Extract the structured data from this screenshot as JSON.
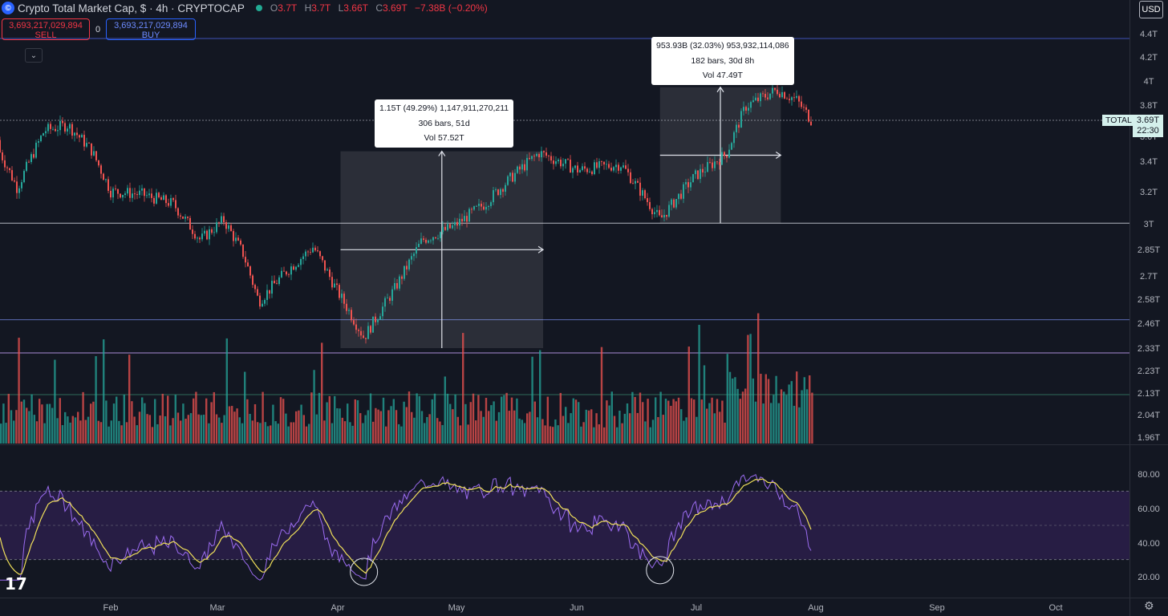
{
  "header": {
    "logo_glyph": "©",
    "symbol_title": "Crypto Total Market Cap, $ · 4h · CRYPTOCAP",
    "open_label": "O",
    "open": "3.7T",
    "high_label": "H",
    "high": "3.7T",
    "low_label": "L",
    "low": "3.66T",
    "close_label": "C",
    "close": "3.69T",
    "change": "−7.38B (−0.20%)",
    "status_color": "#22ab94"
  },
  "trade": {
    "sell_price": "3,693,217,029,894",
    "sell_label": "SELL",
    "spread": "0",
    "buy_price": "3,693,217,029,894",
    "buy_label": "BUY",
    "collapse_glyph": "⌄"
  },
  "currency": "USD",
  "price_tag": {
    "label": "TOTAL",
    "value": "3.69T",
    "countdown": "22:30"
  },
  "measures": [
    {
      "line1": "1.15T (49.29%) 1,147,911,270,211",
      "line2": "306 bars, 51d",
      "line3": "Vol 57.52T"
    },
    {
      "line1": "953.93B (32.03%) 953,932,114,086",
      "line2": "182 bars, 30d 8h",
      "line3": "Vol 47.49T"
    }
  ],
  "branding": {
    "logo_text": "17",
    "settings_icon": "⚙"
  },
  "chart_data": [
    {
      "type": "candlestick",
      "interval": "4h",
      "y_scale": "log",
      "price_axis_ticks": [
        "4.4T",
        "4.2T",
        "4T",
        "3.8T",
        "3.6T",
        "3.4T",
        "3.2T",
        "3T",
        "2.85T",
        "2.7T",
        "2.58T",
        "2.46T",
        "2.33T",
        "2.23T",
        "2.13T",
        "2.04T",
        "1.96T"
      ],
      "x_axis_ticks": [
        "Feb",
        "Mar",
        "Apr",
        "May",
        "Jun",
        "Jul",
        "Aug",
        "Sep",
        "Oct"
      ],
      "last_price": "3.69T",
      "approx_closes": [
        {
          "date": "2025-01-02",
          "v": 3.55
        },
        {
          "date": "2025-01-08",
          "v": 3.22
        },
        {
          "date": "2025-01-15",
          "v": 3.62
        },
        {
          "date": "2025-01-21",
          "v": 3.66
        },
        {
          "date": "2025-01-27",
          "v": 3.48
        },
        {
          "date": "2025-02-01",
          "v": 3.2
        },
        {
          "date": "2025-02-09",
          "v": 3.18
        },
        {
          "date": "2025-02-17",
          "v": 3.12
        },
        {
          "date": "2025-02-24",
          "v": 2.9
        },
        {
          "date": "2025-03-02",
          "v": 3.02
        },
        {
          "date": "2025-03-07",
          "v": 2.82
        },
        {
          "date": "2025-03-11",
          "v": 2.56
        },
        {
          "date": "2025-03-18",
          "v": 2.72
        },
        {
          "date": "2025-03-25",
          "v": 2.86
        },
        {
          "date": "2025-03-31",
          "v": 2.62
        },
        {
          "date": "2025-04-07",
          "v": 2.38
        },
        {
          "date": "2025-04-15",
          "v": 2.63
        },
        {
          "date": "2025-04-22",
          "v": 2.9
        },
        {
          "date": "2025-04-30",
          "v": 2.98
        },
        {
          "date": "2025-05-08",
          "v": 3.12
        },
        {
          "date": "2025-05-16",
          "v": 3.32
        },
        {
          "date": "2025-05-22",
          "v": 3.46
        },
        {
          "date": "2025-06-01",
          "v": 3.34
        },
        {
          "date": "2025-06-12",
          "v": 3.38
        },
        {
          "date": "2025-06-22",
          "v": 3.02
        },
        {
          "date": "2025-07-01",
          "v": 3.3
        },
        {
          "date": "2025-07-09",
          "v": 3.45
        },
        {
          "date": "2025-07-14",
          "v": 3.8
        },
        {
          "date": "2025-07-22",
          "v": 3.93
        },
        {
          "date": "2025-07-27",
          "v": 3.85
        },
        {
          "date": "2025-07-31",
          "v": 3.69
        }
      ],
      "horizontal_levels": [
        3.0,
        2.33,
        2.5
      ],
      "measured_moves": [
        {
          "from_date": "2025-04-01",
          "to_date": "2025-05-23",
          "from_price": 2.33,
          "to_price": 3.47
        },
        {
          "from_date": "2025-06-22",
          "to_date": "2025-07-23",
          "from_price": 3.0,
          "to_price": 3.95
        }
      ]
    },
    {
      "type": "bar",
      "name": "Volume",
      "colors": {
        "up": "#26a69a",
        "down": "#ef5350"
      }
    },
    {
      "type": "line",
      "name": "RSI",
      "ylim": [
        15,
        95
      ],
      "y_ticks": [
        "80.00",
        "60.00",
        "40.00",
        "20.00"
      ],
      "overbought": 70,
      "oversold": 30,
      "colors": {
        "rsi": "#9b6cf0",
        "signal": "#f0e05a",
        "band": "#2b1f4a"
      },
      "circled_lows": [
        {
          "date": "2025-04-07",
          "value": 20
        },
        {
          "date": "2025-06-22",
          "value": 21
        }
      ]
    }
  ],
  "colors": {
    "background": "#131722",
    "up": "#26a69a",
    "down": "#ef5350",
    "level_line": "#5b6bb3",
    "purple_line": "#a98bd6",
    "green_line": "#2f6b5a"
  }
}
